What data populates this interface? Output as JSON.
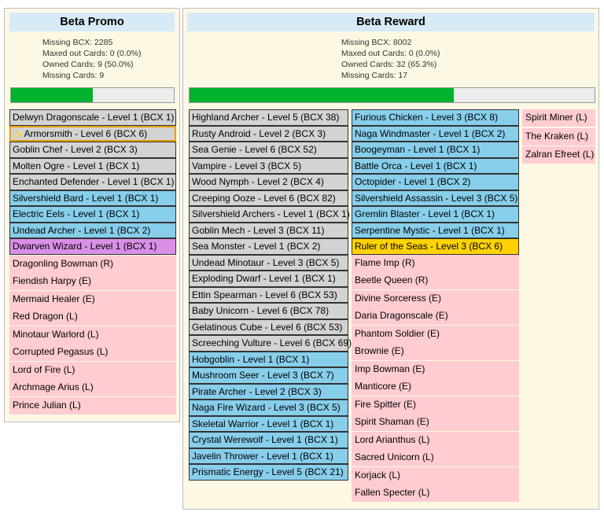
{
  "promo": {
    "title": "Beta Promo",
    "stats": [
      "Missing BCX: 2285",
      "Maxed out Cards: 0 (0.0%)",
      "Owned Cards: 9 (50.0%)",
      "Missing Cards: 9"
    ],
    "progress": 0.5,
    "owned": [
      {
        "label": "Delwyn Dragonscale - Level 1 (BCX 1)",
        "style": "gray"
      },
      {
        "label": "Armorsmith - Level 6 (BCX 6)",
        "style": "gray",
        "highlight": true
      },
      {
        "label": "Goblin Chef - Level 2 (BCX 3)",
        "style": "gray"
      },
      {
        "label": "Molten Ogre - Level 1 (BCX 1)",
        "style": "gray"
      },
      {
        "label": "Enchanted Defender - Level 1 (BCX 1)",
        "style": "gray"
      },
      {
        "label": "Silvershield Bard - Level 1 (BCX 1)",
        "style": "blue"
      },
      {
        "label": "Electric Eels - Level 1 (BCX 1)",
        "style": "blue"
      },
      {
        "label": "Undead Archer - Level 1 (BCX 2)",
        "style": "blue"
      },
      {
        "label": "Dwarven Wizard - Level 1 (BCX 1)",
        "style": "purple"
      }
    ],
    "missing": [
      "Dragonling Bowman (R)",
      "Fiendish Harpy (E)",
      "Mermaid Healer (E)",
      "Red Dragon (L)",
      "Minotaur Warlord (L)",
      "Corrupted Pegasus (L)",
      "Lord of Fire (L)",
      "Archmage Arius (L)",
      "Prince Julian (L)"
    ]
  },
  "reward": {
    "title": "Beta Reward",
    "stats": [
      "Missing BCX: 8002",
      "Maxed out Cards: 0 (0.0%)",
      "Owned Cards: 32 (65.3%)",
      "Missing Cards: 17"
    ],
    "progress": 0.653,
    "col1": [
      {
        "label": "Highland Archer - Level 5 (BCX 38)",
        "style": "gray"
      },
      {
        "label": "Rusty Android - Level 2 (BCX 3)",
        "style": "gray"
      },
      {
        "label": "Sea Genie - Level 6 (BCX 52)",
        "style": "gray"
      },
      {
        "label": "Vampire - Level 3 (BCX 5)",
        "style": "gray"
      },
      {
        "label": "Wood Nymph - Level 2 (BCX 4)",
        "style": "gray"
      },
      {
        "label": "Creeping Ooze - Level 6 (BCX 82)",
        "style": "gray"
      },
      {
        "label": "Silvershield Archers - Level 1 (BCX 1)",
        "style": "gray"
      },
      {
        "label": "Goblin Mech - Level 3 (BCX 11)",
        "style": "gray"
      },
      {
        "label": "Sea Monster - Level 1 (BCX 2)",
        "style": "gray"
      },
      {
        "label": "Undead Minotaur - Level 3 (BCX 5)",
        "style": "gray"
      },
      {
        "label": "Exploding Dwarf - Level 1 (BCX 1)",
        "style": "gray"
      },
      {
        "label": "Ettin Spearman - Level 6 (BCX 53)",
        "style": "gray"
      },
      {
        "label": "Baby Unicorn - Level 6 (BCX 78)",
        "style": "gray"
      },
      {
        "label": "Gelatinous Cube - Level 6 (BCX 53)",
        "style": "gray"
      },
      {
        "label": "Screeching Vulture - Level 6 (BCX 69)",
        "style": "gray"
      },
      {
        "label": "Hobgoblin - Level 1 (BCX 1)",
        "style": "blue"
      },
      {
        "label": "Mushroom Seer - Level 3 (BCX 7)",
        "style": "blue"
      },
      {
        "label": "Pirate Archer - Level 2 (BCX 3)",
        "style": "blue"
      },
      {
        "label": "Naga Fire Wizard - Level 3 (BCX 5)",
        "style": "blue"
      },
      {
        "label": "Skeletal Warrior - Level 1 (BCX 1)",
        "style": "blue"
      },
      {
        "label": "Crystal Werewolf - Level 1 (BCX 1)",
        "style": "blue"
      },
      {
        "label": "Javelin Thrower - Level 1 (BCX 1)",
        "style": "blue"
      },
      {
        "label": "Prismatic Energy - Level 5 (BCX 21)",
        "style": "blue"
      }
    ],
    "col2": [
      {
        "label": "Furious Chicken - Level 3 (BCX 8)",
        "style": "blue"
      },
      {
        "label": "Naga Windmaster - Level 1 (BCX 2)",
        "style": "blue"
      },
      {
        "label": "Boogeyman - Level 1 (BCX 1)",
        "style": "blue"
      },
      {
        "label": "Battle Orca - Level 1 (BCX 1)",
        "style": "blue"
      },
      {
        "label": "Octopider - Level 1 (BCX 2)",
        "style": "blue"
      },
      {
        "label": "Silvershield Assassin - Level 3 (BCX 5)",
        "style": "blue"
      },
      {
        "label": "Gremlin Blaster - Level 1 (BCX 1)",
        "style": "blue"
      },
      {
        "label": "Serpentine Mystic - Level 1 (BCX 1)",
        "style": "blue"
      },
      {
        "label": "Ruler of the Seas - Level 3 (BCX 6)",
        "style": "gold"
      },
      {
        "label": "Flame Imp (R)",
        "style": "pink"
      },
      {
        "label": "Beetle Queen (R)",
        "style": "pink"
      },
      {
        "label": "Divine Sorceress (E)",
        "style": "pink"
      },
      {
        "label": "Daria Dragonscale (E)",
        "style": "pink"
      },
      {
        "label": "Phantom Soldier (E)",
        "style": "pink"
      },
      {
        "label": "Brownie (E)",
        "style": "pink"
      },
      {
        "label": "Imp Bowman (E)",
        "style": "pink"
      },
      {
        "label": "Manticore (E)",
        "style": "pink"
      },
      {
        "label": "Fire Spitter (E)",
        "style": "pink"
      },
      {
        "label": "Spirit Shaman (E)",
        "style": "pink"
      },
      {
        "label": "Lord Arianthus (L)",
        "style": "pink"
      },
      {
        "label": "Sacred Unicorn (L)",
        "style": "pink"
      },
      {
        "label": "Korjack (L)",
        "style": "pink"
      },
      {
        "label": "Fallen Specter (L)",
        "style": "pink"
      }
    ],
    "col3": [
      "Spirit Miner (L)",
      "The Kraken (L)",
      "Zalran Efreet (L)"
    ]
  },
  "colors": {
    "owned_gold": "#d3d3d3",
    "owned_regular": "#87ceeb",
    "missing": "#ffccd2",
    "progress": "#00b22d",
    "title_bg": "#d7ebf7",
    "panel_bg": "#fdf8e4"
  },
  "icons": {
    "highlight_card": "sparkle-icon"
  }
}
